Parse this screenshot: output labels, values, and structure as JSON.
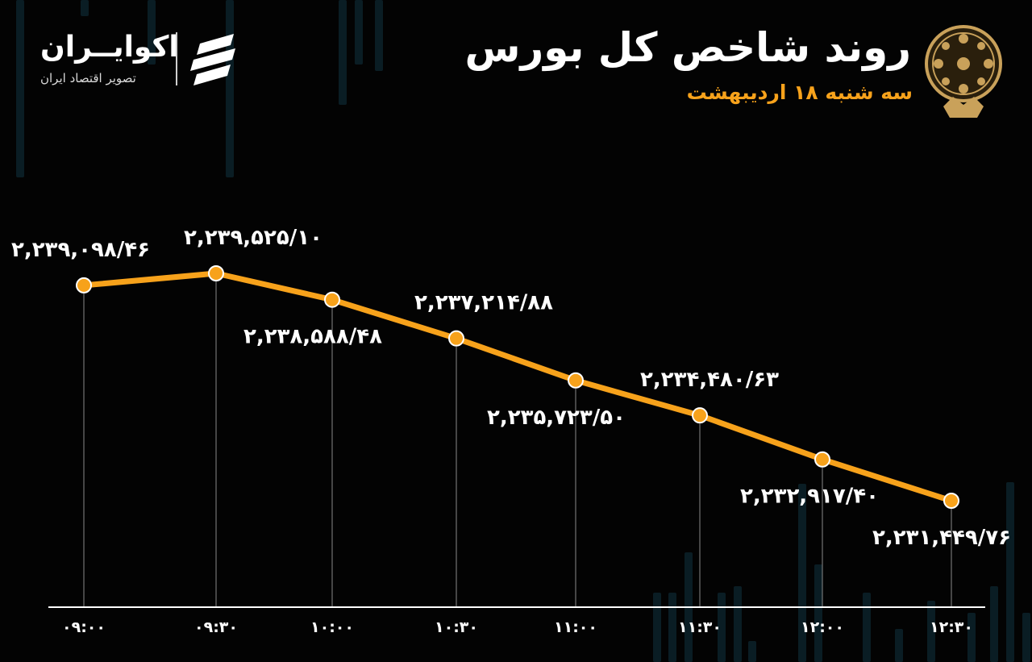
{
  "header": {
    "title": "روند شاخص کل بورس",
    "subtitle": "سه شنبه ۱۸ اردیبهشت"
  },
  "brand": {
    "name": "اکوایــران",
    "tagline": "تصویر اقتصاد ایران"
  },
  "icons": {
    "exchange_emblem": "tehran-stock-exchange-emblem",
    "brand_logo": "ekoiran-logo"
  },
  "colors": {
    "background": "#030303",
    "line": "#f7a21b",
    "marker": "#f7a21b",
    "marker_stroke": "#ffffff",
    "labels": "#ffffff",
    "axis": "#ffffff",
    "guide": "#8a8a8a",
    "accent": "#f7a21b",
    "backdrop_bars": "#0e2a33"
  },
  "chart_data": {
    "type": "line",
    "title": "روند شاخص کل بورس",
    "subtitle": "سه شنبه ۱۸ اردیبهشت",
    "xlabel": "",
    "ylabel": "",
    "categories": [
      "۰۹:۰۰",
      "۰۹:۳۰",
      "۱۰:۰۰",
      "۱۰:۳۰",
      "۱۱:۰۰",
      "۱۱:۳۰",
      "۱۲:۰۰",
      "۱۲:۳۰"
    ],
    "series": [
      {
        "values": [
          2239098.46,
          2239525.1,
          2238588.48,
          2237214.88,
          2235723.5,
          2234480.63,
          2232917.4,
          2231449.76
        ],
        "data_labels": [
          "۲,۲۳۹,۰۹۸/۴۶",
          "۲,۲۳۹,۵۲۵/۱۰",
          "۲,۲۳۸,۵۸۸/۴۸",
          "۲,۲۳۷,۲۱۴/۸۸",
          "۲,۲۳۵,۷۲۳/۵۰",
          "۲,۲۳۴,۴۸۰/۶۳",
          "۲,۲۳۲,۹۱۷/۴۰",
          "۲,۲۳۱,۴۴۹/۷۶"
        ],
        "label_position": [
          "above",
          "above",
          "below",
          "above",
          "below",
          "above",
          "below",
          "below"
        ]
      }
    ],
    "grid": false,
    "legend": "none"
  }
}
